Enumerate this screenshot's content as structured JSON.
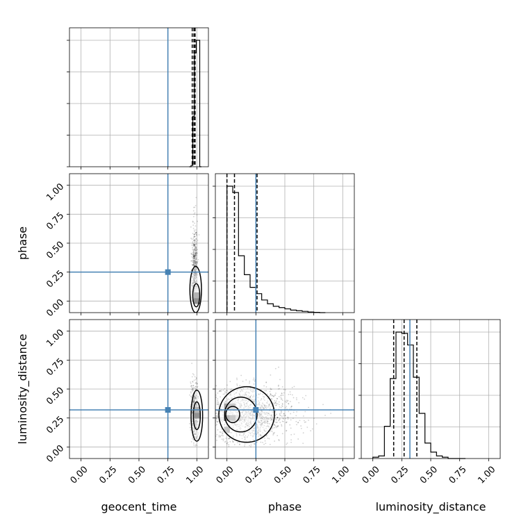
{
  "chart_data": {
    "type": "corner",
    "parameters": [
      "geocent_time",
      "phase",
      "luminosity_distance"
    ],
    "axis_labels": {
      "geocent_time": "geocent_time",
      "phase": "phase",
      "luminosity_distance": "luminosity_distance"
    },
    "range": [
      -0.1,
      1.1
    ],
    "ticks": [
      0.0,
      0.25,
      0.5,
      0.75,
      1.0
    ],
    "tick_labels": [
      "0.00",
      "0.25",
      "0.50",
      "0.75",
      "1.00"
    ],
    "truths": {
      "geocent_time": 0.75,
      "phase": 0.25,
      "luminosity_distance": 0.32
    },
    "truth_color": "#4682b4",
    "quantile_lines": {
      "geocent_time": [
        0.96,
        0.975,
        0.985
      ],
      "phase": [
        0.0,
        0.065,
        0.26
      ],
      "luminosity_distance": [
        0.18,
        0.27,
        0.38
      ]
    },
    "histograms": {
      "geocent_time": {
        "edges": [
          0.935,
          0.95,
          0.965,
          0.98,
          0.995,
          1.01,
          1.025,
          1.04
        ],
        "counts": [
          0.0,
          0.01,
          0.4,
          0.9,
          1.0,
          1.0,
          0.0
        ]
      },
      "phase": {
        "edges": [
          0.0,
          0.05,
          0.1,
          0.15,
          0.2,
          0.25,
          0.3,
          0.35,
          0.4,
          0.45,
          0.5,
          0.55,
          0.6,
          0.65,
          0.7,
          0.75,
          0.8,
          0.85
        ],
        "counts": [
          1.0,
          0.95,
          0.45,
          0.3,
          0.2,
          0.15,
          0.1,
          0.07,
          0.05,
          0.04,
          0.03,
          0.02,
          0.015,
          0.01,
          0.005,
          0.002,
          0.0
        ]
      },
      "luminosity_distance": {
        "edges": [
          0.0,
          0.05,
          0.1,
          0.15,
          0.2,
          0.25,
          0.3,
          0.35,
          0.4,
          0.45,
          0.5,
          0.55,
          0.6,
          0.65,
          0.7,
          0.75,
          0.8
        ],
        "counts": [
          0.01,
          0.02,
          0.25,
          0.62,
          0.98,
          0.97,
          0.88,
          0.63,
          0.35,
          0.12,
          0.05,
          0.02,
          0.01,
          0.0,
          0.0,
          0.0
        ]
      }
    },
    "joint": [
      {
        "x": "geocent_time",
        "y": "phase",
        "scatter": {
          "center": [
            0.98,
            0.28
          ],
          "spread": [
            0.012,
            0.2
          ],
          "ymin": 0.0,
          "ymax": 0.9,
          "n": 500
        },
        "contours": [
          {
            "center": [
              0.99,
              0.1
            ],
            "half_width": [
              0.05,
              0.2
            ]
          },
          {
            "center": [
              0.995,
              0.05
            ],
            "half_width": [
              0.03,
              0.1
            ]
          }
        ],
        "density_cells": [
          {
            "x": 1.0,
            "y": 0.05,
            "level": 0.7
          },
          {
            "x": 1.0,
            "y": 0.0,
            "level": 1.0
          }
        ]
      },
      {
        "x": "geocent_time",
        "y": "luminosity_distance",
        "scatter": {
          "center": [
            0.98,
            0.3
          ],
          "spread": [
            0.015,
            0.12
          ],
          "ymin": 0.0,
          "ymax": 0.75,
          "n": 500
        },
        "contours": [
          {
            "center": [
              1.0,
              0.27
            ],
            "half_width": [
              0.05,
              0.22
            ]
          },
          {
            "center": [
              1.0,
              0.27
            ],
            "half_width": [
              0.03,
              0.12
            ]
          }
        ],
        "density_cells": [
          {
            "x": 1.0,
            "y": 0.32,
            "level": 0.7
          },
          {
            "x": 1.0,
            "y": 0.27,
            "level": 1.0
          }
        ]
      },
      {
        "x": "phase",
        "y": "luminosity_distance",
        "scatter": {
          "center": [
            0.18,
            0.28
          ],
          "spread": [
            0.2,
            0.12
          ],
          "ymin": 0.0,
          "ymax": 0.75,
          "n": 1400
        },
        "contours": [
          {
            "center": [
              0.17,
              0.28
            ],
            "half_width": [
              0.24,
              0.24
            ]
          },
          {
            "center": [
              0.12,
              0.28
            ],
            "half_width": [
              0.14,
              0.15
            ]
          },
          {
            "center": [
              0.05,
              0.28
            ],
            "half_width": [
              0.06,
              0.07
            ]
          }
        ],
        "density_cells": [
          {
            "x": 0.0,
            "y": 0.25,
            "level": 1.0
          },
          {
            "x": 0.05,
            "y": 0.25,
            "level": 0.75
          },
          {
            "x": 0.0,
            "y": 0.35,
            "level": 0.55
          },
          {
            "x": 0.05,
            "y": 0.35,
            "level": 0.5
          },
          {
            "x": 0.1,
            "y": 0.25,
            "level": 0.35
          },
          {
            "x": 0.0,
            "y": 0.15,
            "level": 0.35
          }
        ]
      }
    ]
  }
}
